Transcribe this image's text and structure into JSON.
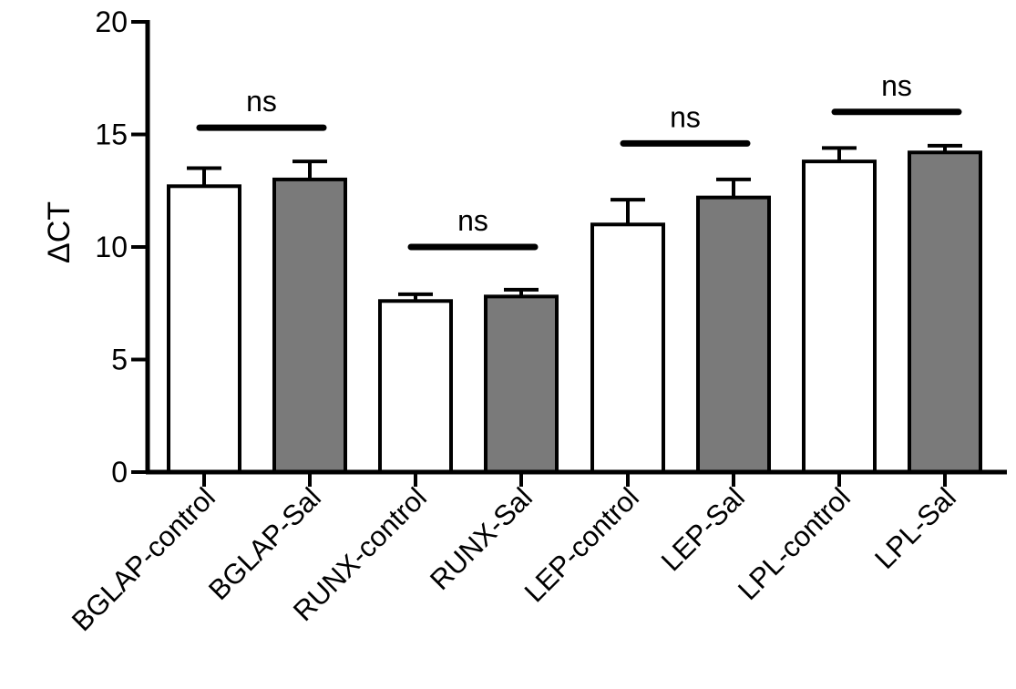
{
  "chart_data": {
    "type": "bar",
    "title": "",
    "xlabel": "",
    "ylabel": "ΔCT",
    "ylim": [
      0,
      20
    ],
    "yticks": [
      0,
      5,
      10,
      15,
      20
    ],
    "grid": false,
    "legend": "none",
    "categories": [
      "BGLAP-control",
      "BGLAP-Sal",
      "RUNX-control",
      "RUNX-Sal",
      "LEP-control",
      "LEP-Sal",
      "LPL-control",
      "LPL-Sal"
    ],
    "values": [
      12.7,
      13.0,
      7.6,
      7.8,
      11.0,
      12.2,
      13.8,
      14.2
    ],
    "error_plus": [
      0.8,
      0.8,
      0.3,
      0.3,
      1.1,
      0.8,
      0.6,
      0.3
    ],
    "bar_fill": [
      "#ffffff",
      "#7a7a7a",
      "#ffffff",
      "#7a7a7a",
      "#ffffff",
      "#7a7a7a",
      "#ffffff",
      "#7a7a7a"
    ],
    "annotations": [
      {
        "text": "ns",
        "bars": [
          0,
          1
        ],
        "y": 15.3
      },
      {
        "text": "ns",
        "bars": [
          2,
          3
        ],
        "y": 10.0
      },
      {
        "text": "ns",
        "bars": [
          4,
          5
        ],
        "y": 14.6
      },
      {
        "text": "ns",
        "bars": [
          6,
          7
        ],
        "y": 16.0
      }
    ]
  }
}
